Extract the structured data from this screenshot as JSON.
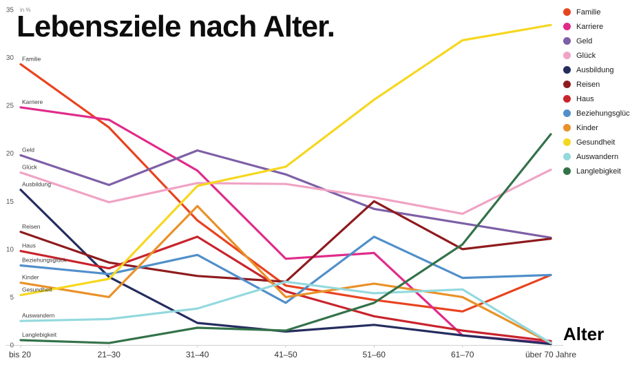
{
  "title": "Lebensziele nach Alter.",
  "chart_data": {
    "type": "line",
    "title": "Lebensziele nach Alter.",
    "xlabel": "Alter",
    "ylabel": "in %",
    "ylim": [
      0,
      35
    ],
    "yticks": [
      0,
      5,
      10,
      15,
      20,
      25,
      30,
      35
    ],
    "grid": false,
    "legend_position": "top-right",
    "categories": [
      "bis 20",
      "21–30",
      "31–40",
      "41–50",
      "51–60",
      "61–70",
      "über 70 Jahre"
    ],
    "series": [
      {
        "name": "Familie",
        "color": "#e8431f",
        "values": [
          29.3,
          22.7,
          13.0,
          6.2,
          4.7,
          3.5,
          7.3
        ]
      },
      {
        "name": "Karriere",
        "color": "#e02b8a",
        "values": [
          24.8,
          23.5,
          18.2,
          9.0,
          9.6,
          1.0,
          0.2
        ]
      },
      {
        "name": "Geld",
        "color": "#7d5fa7",
        "values": [
          19.8,
          16.7,
          20.3,
          17.8,
          14.2,
          12.7,
          11.2
        ]
      },
      {
        "name": "Glück",
        "color": "#f0a3c4",
        "values": [
          18.0,
          14.9,
          16.9,
          16.8,
          15.4,
          13.7,
          18.3
        ]
      },
      {
        "name": "Ausbildung",
        "color": "#242d5e",
        "values": [
          16.2,
          7.1,
          2.3,
          1.4,
          2.1,
          1.0,
          0.1
        ]
      },
      {
        "name": "Reisen",
        "color": "#8e1b1e",
        "values": [
          11.8,
          8.6,
          7.2,
          6.6,
          15.0,
          10.0,
          11.1
        ]
      },
      {
        "name": "Haus",
        "color": "#c8242c",
        "values": [
          9.8,
          8.0,
          11.3,
          5.6,
          3.0,
          1.5,
          0.4
        ]
      },
      {
        "name": "Beziehungsglück",
        "color": "#518fca",
        "values": [
          8.3,
          7.4,
          9.4,
          4.4,
          11.3,
          7.0,
          7.3
        ]
      },
      {
        "name": "Kinder",
        "color": "#e99128",
        "values": [
          6.5,
          5.0,
          14.5,
          5.0,
          6.4,
          5.0,
          0.2
        ]
      },
      {
        "name": "Gesundheit",
        "color": "#f6d71f",
        "values": [
          5.2,
          6.9,
          16.6,
          18.6,
          25.6,
          31.8,
          33.4
        ]
      },
      {
        "name": "Auswandern",
        "color": "#93d9de",
        "values": [
          2.5,
          2.7,
          3.8,
          6.6,
          5.4,
          5.8,
          0.2
        ]
      },
      {
        "name": "Langlebigkeit",
        "color": "#337249",
        "values": [
          0.5,
          0.2,
          1.8,
          1.5,
          4.4,
          10.5,
          22.0
        ]
      }
    ]
  }
}
